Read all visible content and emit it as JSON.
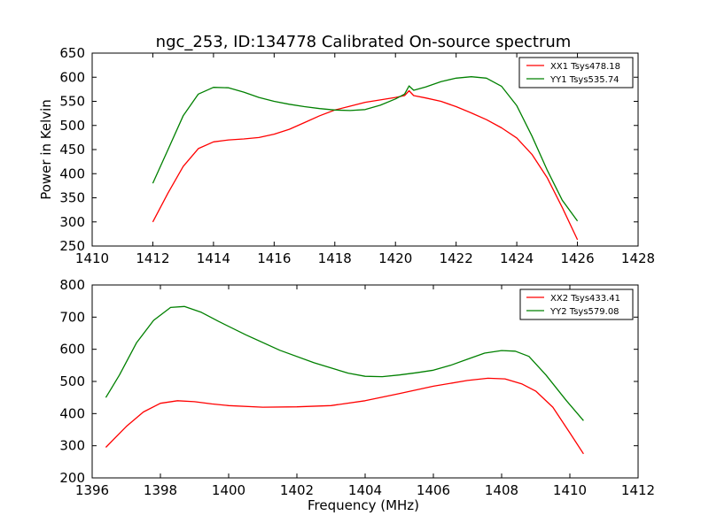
{
  "chart_data": [
    {
      "type": "line",
      "title": "ngc_253, ID:134778 Calibrated On-source spectrum",
      "xlabel": "",
      "ylabel": "Power in Kelvin",
      "xlim": [
        1410,
        1428
      ],
      "ylim": [
        250,
        650
      ],
      "xticks": [
        1410,
        1412,
        1414,
        1416,
        1418,
        1420,
        1422,
        1424,
        1426,
        1428
      ],
      "yticks": [
        250,
        300,
        350,
        400,
        450,
        500,
        550,
        600,
        650
      ],
      "legend_position": "top-right",
      "series": [
        {
          "name": "XX1 Tsys478.18",
          "color": "#ff0000",
          "points": [
            [
              1412,
              300
            ],
            [
              1412.5,
              360
            ],
            [
              1413,
              415
            ],
            [
              1413.5,
              452
            ],
            [
              1414,
              466
            ],
            [
              1414.5,
              470
            ],
            [
              1415,
              472
            ],
            [
              1415.5,
              475
            ],
            [
              1416,
              482
            ],
            [
              1416.5,
              492
            ],
            [
              1417,
              506
            ],
            [
              1417.5,
              520
            ],
            [
              1418,
              532
            ],
            [
              1418.5,
              540
            ],
            [
              1419,
              548
            ],
            [
              1419.5,
              553
            ],
            [
              1420,
              558
            ],
            [
              1420.3,
              562
            ],
            [
              1420.45,
              572
            ],
            [
              1420.6,
              562
            ],
            [
              1421,
              557
            ],
            [
              1421.5,
              550
            ],
            [
              1422,
              539
            ],
            [
              1422.5,
              526
            ],
            [
              1423,
              512
            ],
            [
              1423.5,
              495
            ],
            [
              1424,
              474
            ],
            [
              1424.5,
              440
            ],
            [
              1425,
              392
            ],
            [
              1425.5,
              330
            ],
            [
              1426,
              263
            ]
          ]
        },
        {
          "name": "YY1 Tsys535.74",
          "color": "#008000",
          "points": [
            [
              1412,
              380
            ],
            [
              1412.5,
              450
            ],
            [
              1413,
              520
            ],
            [
              1413.5,
              565
            ],
            [
              1414,
              579
            ],
            [
              1414.5,
              578
            ],
            [
              1415,
              569
            ],
            [
              1415.5,
              558
            ],
            [
              1416,
              550
            ],
            [
              1416.5,
              544
            ],
            [
              1417,
              539
            ],
            [
              1417.5,
              535
            ],
            [
              1418,
              532
            ],
            [
              1418.5,
              531
            ],
            [
              1419,
              533
            ],
            [
              1419.5,
              542
            ],
            [
              1420,
              555
            ],
            [
              1420.3,
              565
            ],
            [
              1420.45,
              582
            ],
            [
              1420.6,
              573
            ],
            [
              1421,
              580
            ],
            [
              1421.5,
              591
            ],
            [
              1422,
              598
            ],
            [
              1422.5,
              601
            ],
            [
              1423,
              598
            ],
            [
              1423.5,
              581
            ],
            [
              1424,
              541
            ],
            [
              1424.5,
              478
            ],
            [
              1425,
              408
            ],
            [
              1425.5,
              345
            ],
            [
              1426,
              302
            ]
          ]
        }
      ]
    },
    {
      "type": "line",
      "title": "",
      "xlabel": "Frequency (MHz)",
      "ylabel": "",
      "xlim": [
        1396,
        1412
      ],
      "ylim": [
        200,
        800
      ],
      "xticks": [
        1396,
        1398,
        1400,
        1402,
        1404,
        1406,
        1408,
        1410,
        1412
      ],
      "yticks": [
        200,
        300,
        400,
        500,
        600,
        700,
        800
      ],
      "legend_position": "top-right",
      "series": [
        {
          "name": "XX2 Tsys433.41",
          "color": "#ff0000",
          "points": [
            [
              1396.4,
              295
            ],
            [
              1397,
              360
            ],
            [
              1397.5,
              405
            ],
            [
              1398,
              432
            ],
            [
              1398.5,
              440
            ],
            [
              1399,
              437
            ],
            [
              1399.5,
              430
            ],
            [
              1400,
              425
            ],
            [
              1401,
              420
            ],
            [
              1402,
              421
            ],
            [
              1403,
              425
            ],
            [
              1404,
              440
            ],
            [
              1405,
              462
            ],
            [
              1406,
              485
            ],
            [
              1407,
              503
            ],
            [
              1407.6,
              510
            ],
            [
              1408.1,
              508
            ],
            [
              1408.6,
              492
            ],
            [
              1409,
              470
            ],
            [
              1409.5,
              420
            ],
            [
              1410,
              340
            ],
            [
              1410.4,
              275
            ]
          ]
        },
        {
          "name": "YY2 Tsys579.08",
          "color": "#008000",
          "points": [
            [
              1396.4,
              450
            ],
            [
              1396.8,
              520
            ],
            [
              1397.3,
              620
            ],
            [
              1397.8,
              690
            ],
            [
              1398.3,
              730
            ],
            [
              1398.7,
              733
            ],
            [
              1399.2,
              715
            ],
            [
              1399.7,
              687
            ],
            [
              1400.5,
              645
            ],
            [
              1401.5,
              597
            ],
            [
              1402.5,
              558
            ],
            [
              1403.5,
              526
            ],
            [
              1404,
              516
            ],
            [
              1404.5,
              515
            ],
            [
              1405,
              520
            ],
            [
              1405.5,
              527
            ],
            [
              1406,
              535
            ],
            [
              1406.5,
              550
            ],
            [
              1407,
              569
            ],
            [
              1407.5,
              588
            ],
            [
              1408,
              596
            ],
            [
              1408.4,
              594
            ],
            [
              1408.8,
              578
            ],
            [
              1409.3,
              520
            ],
            [
              1409.9,
              440
            ],
            [
              1410.4,
              378
            ]
          ]
        }
      ]
    }
  ]
}
